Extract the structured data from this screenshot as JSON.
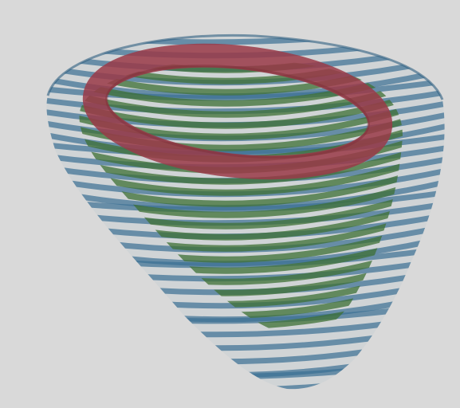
{
  "scene": {
    "background_color": "#d9d9d9",
    "colors": {
      "outer_band": "#3b6f93",
      "inner_band": "#3e7034",
      "top_ring": "#9a3a48"
    }
  }
}
